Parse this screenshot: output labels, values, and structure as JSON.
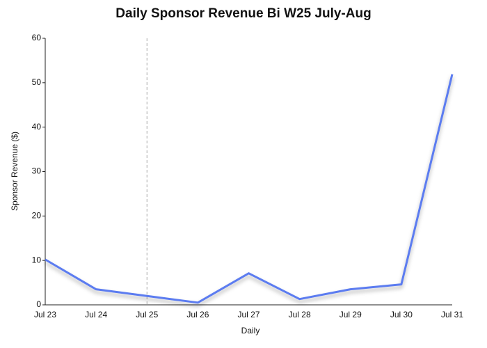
{
  "chart_data": {
    "type": "line",
    "title": "Daily Sponsor Revenue Bi W25 July-Aug",
    "x_label": "Daily",
    "y_label": "Sponsor Revenue ($)",
    "categories": [
      "Jul 23",
      "Jul 24",
      "Jul 25",
      "Jul 26",
      "Jul 27",
      "Jul 28",
      "Jul 29",
      "Jul 30",
      "Jul 31"
    ],
    "series": [
      {
        "name": "Sponsor Revenue",
        "color": "#5b7cf0",
        "values": [
          10.2,
          3.5,
          2.0,
          0.5,
          7.1,
          1.3,
          3.5,
          4.6,
          51.9
        ]
      }
    ],
    "ylim": [
      0,
      60
    ],
    "yticks": [
      0,
      10,
      20,
      30,
      40,
      50,
      60
    ],
    "highlight_category": "Jul 25",
    "grid": false,
    "legend": false
  }
}
